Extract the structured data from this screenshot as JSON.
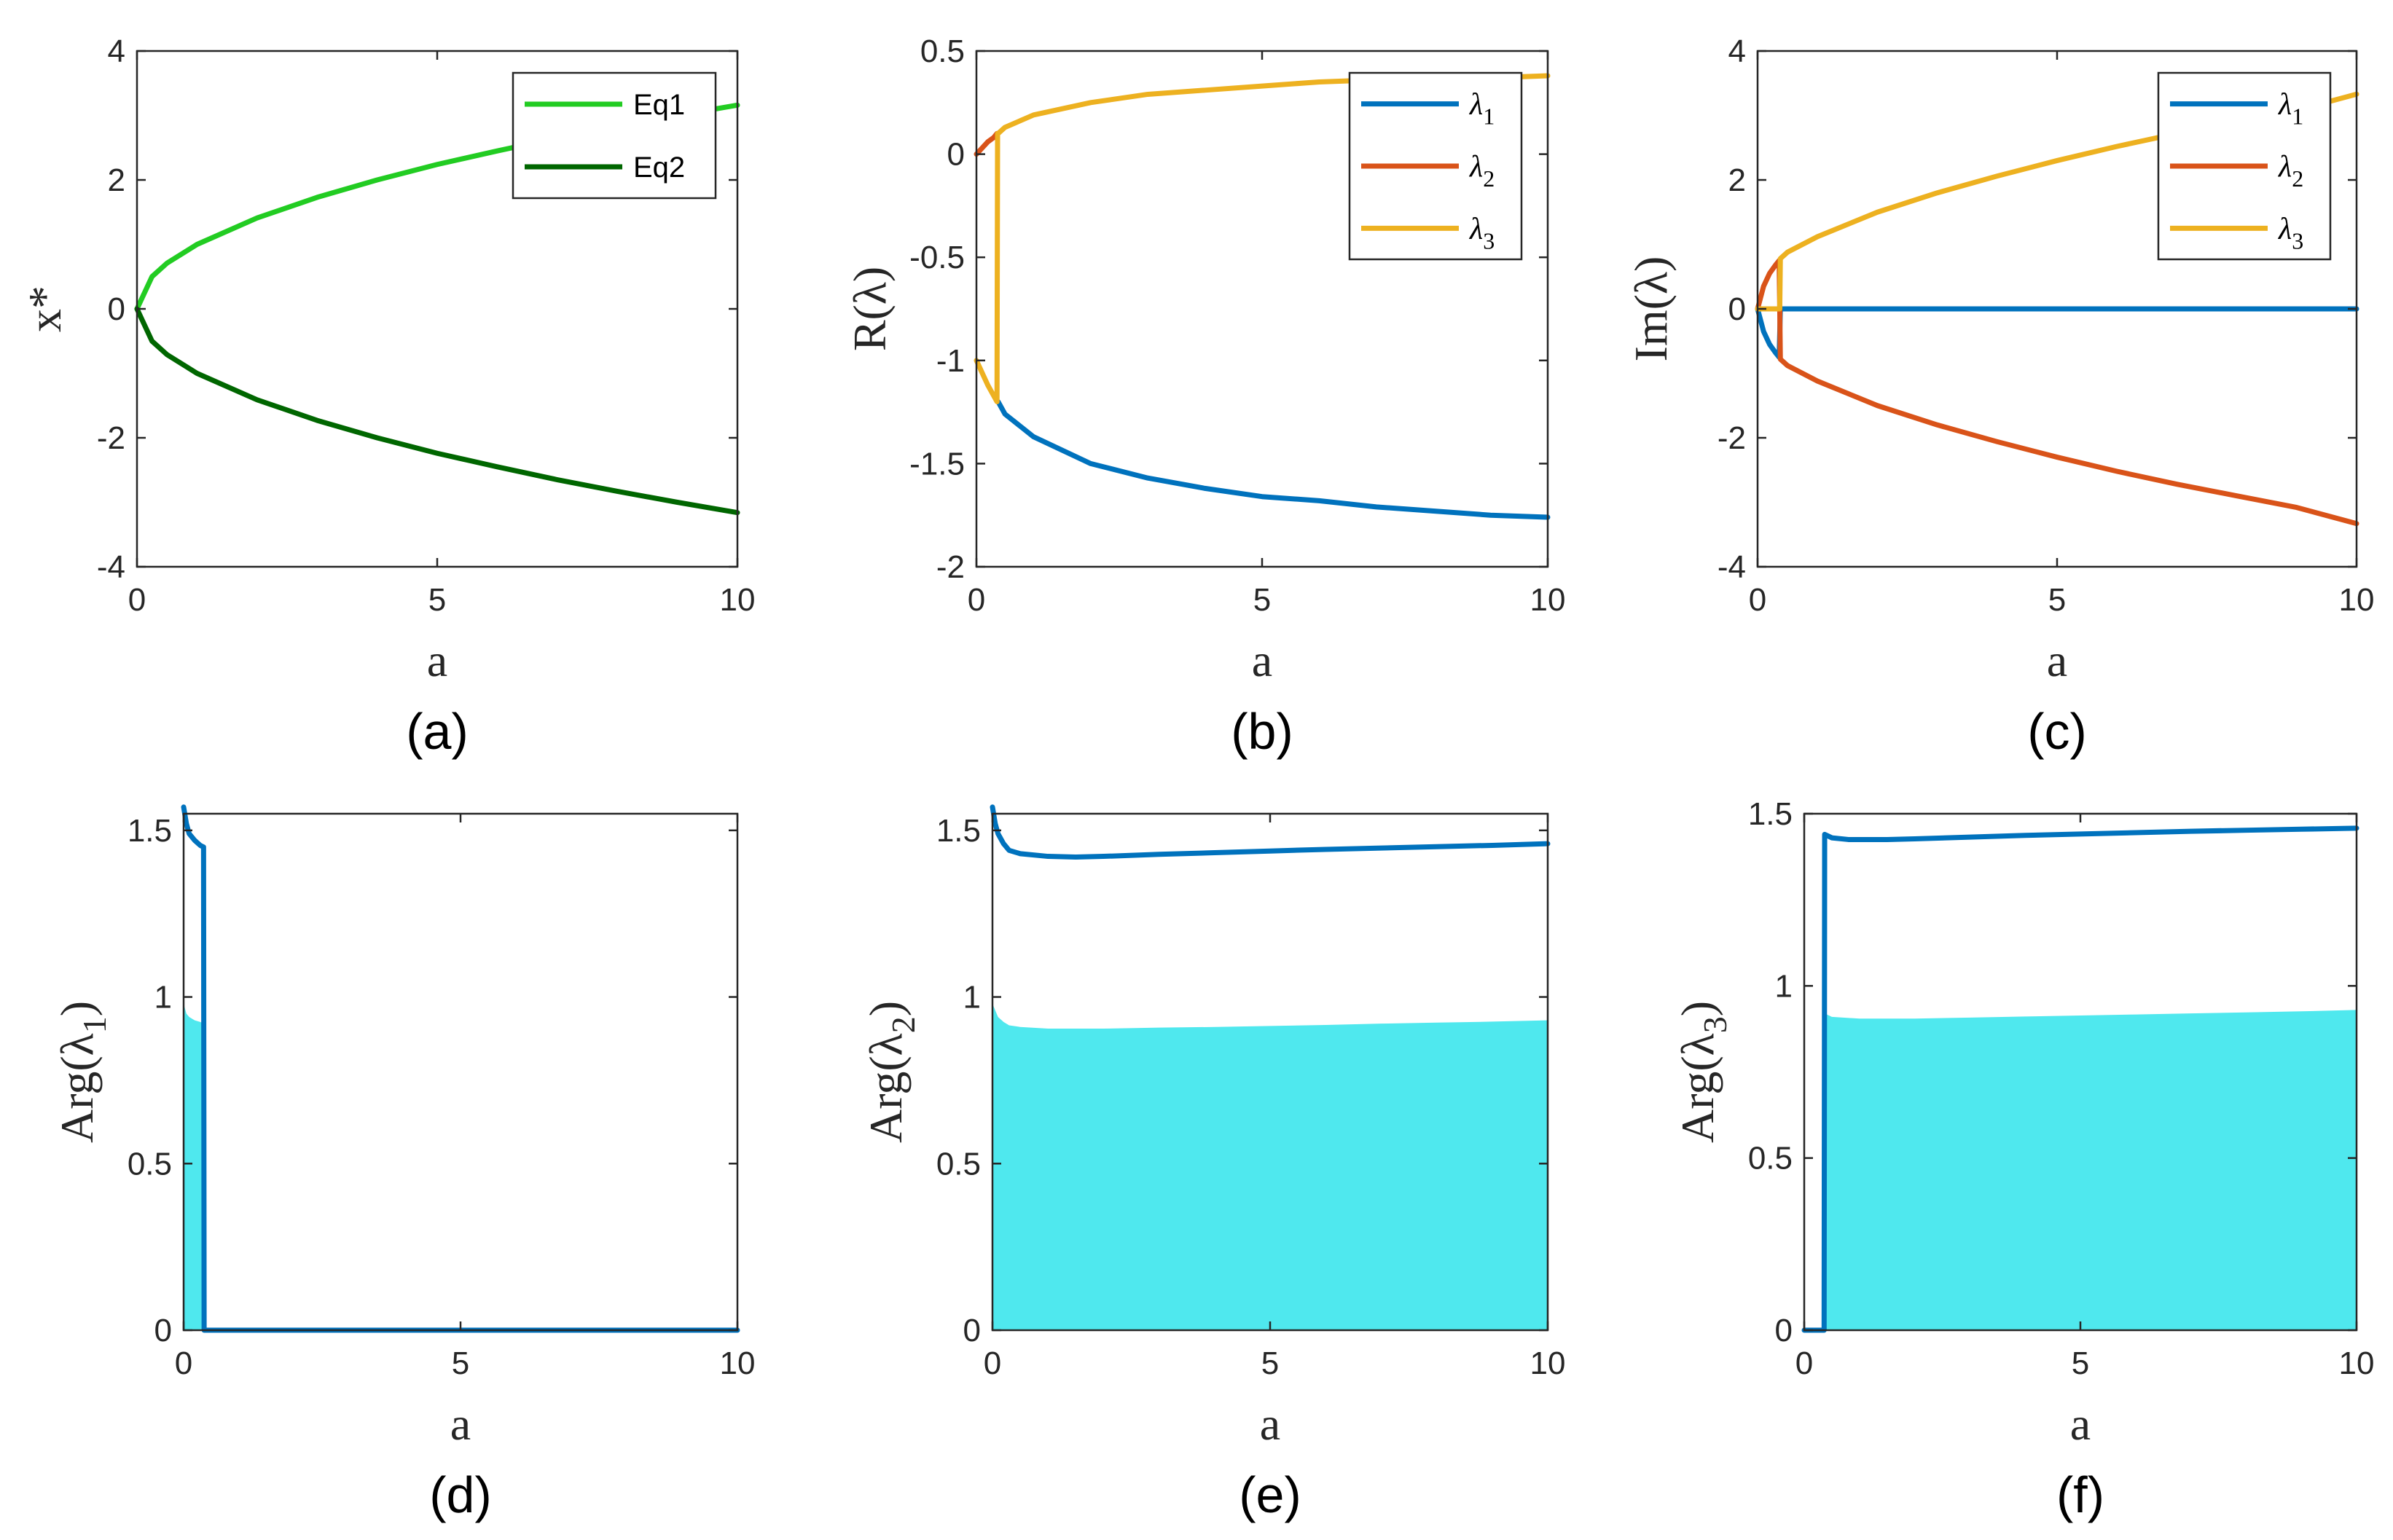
{
  "chart_data": [
    {
      "id": "a",
      "panel_label": "(a)",
      "type": "line",
      "xlabel": "a",
      "ylabel": "x*",
      "xlim": [
        0,
        10
      ],
      "ylim": [
        -4,
        4
      ],
      "xticks": [
        "0",
        "5",
        "10"
      ],
      "yticks": [
        "-4",
        "-2",
        "0",
        "2",
        "4"
      ],
      "legend": "top-right",
      "series": [
        {
          "name": "Eq1",
          "color": "#22cc22",
          "x": [
            0,
            0.25,
            0.5,
            1,
            2,
            3,
            4,
            5,
            6,
            7,
            8,
            9,
            10
          ],
          "y": [
            0,
            0.5,
            0.71,
            1.0,
            1.41,
            1.73,
            2.0,
            2.24,
            2.45,
            2.65,
            2.83,
            3.0,
            3.16
          ]
        },
        {
          "name": "Eq2",
          "color": "#006600",
          "x": [
            0,
            0.25,
            0.5,
            1,
            2,
            3,
            4,
            5,
            6,
            7,
            8,
            9,
            10
          ],
          "y": [
            0,
            -0.5,
            -0.71,
            -1.0,
            -1.41,
            -1.73,
            -2.0,
            -2.24,
            -2.45,
            -2.65,
            -2.83,
            -3.0,
            -3.16
          ]
        }
      ]
    },
    {
      "id": "b",
      "panel_label": "(b)",
      "type": "line",
      "xlabel": "a",
      "ylabel": "R(λ)",
      "xlim": [
        0,
        10
      ],
      "ylim": [
        -2,
        0.5
      ],
      "xticks": [
        "0",
        "5",
        "10"
      ],
      "yticks": [
        "-2",
        "-1.5",
        "-1",
        "-0.5",
        "0",
        "0.5"
      ],
      "legend": "top-right",
      "series": [
        {
          "name": "λ",
          "subscript": "1",
          "color": "#0072bd",
          "x": [
            0.38,
            0.5,
            1,
            2,
            3,
            4,
            5,
            6,
            7,
            8,
            9,
            10
          ],
          "y": [
            -1.2,
            -1.26,
            -1.37,
            -1.5,
            -1.57,
            -1.62,
            -1.66,
            -1.68,
            -1.71,
            -1.73,
            -1.75,
            -1.76
          ]
        },
        {
          "name": "λ",
          "subscript": "2",
          "color": "#d95319",
          "x": [
            0,
            0.1,
            0.2,
            0.3,
            0.36
          ],
          "y": [
            0,
            0.03,
            0.06,
            0.08,
            0.1
          ]
        },
        {
          "name": "λ",
          "subscript": "3",
          "color": "#edb120",
          "x": [
            0,
            0.1,
            0.2,
            0.3,
            0.36,
            0.37,
            0.38,
            0.5,
            1,
            2,
            3,
            4,
            5,
            6,
            7,
            8,
            9,
            10
          ],
          "y": [
            -1.0,
            -1.06,
            -1.12,
            -1.17,
            -1.2,
            0.1,
            0.1,
            0.13,
            0.19,
            0.25,
            0.29,
            0.31,
            0.33,
            0.35,
            0.36,
            0.37,
            0.37,
            0.38
          ]
        }
      ]
    },
    {
      "id": "c",
      "panel_label": "(c)",
      "type": "line",
      "xlabel": "a",
      "ylabel": "Im(λ)",
      "xlim": [
        0,
        10
      ],
      "ylim": [
        -4,
        4
      ],
      "xticks": [
        "0",
        "5",
        "10"
      ],
      "yticks": [
        "-4",
        "-2",
        "0",
        "2",
        "4"
      ],
      "legend": "top-right",
      "series": [
        {
          "name": "λ",
          "subscript": "1",
          "color": "#0072bd",
          "x": [
            0,
            0.1,
            0.2,
            0.3,
            0.36,
            0.38,
            1,
            2,
            4,
            6,
            8,
            10
          ],
          "y": [
            0,
            -0.35,
            -0.55,
            -0.68,
            -0.75,
            0,
            0,
            0,
            0,
            0,
            0,
            0
          ]
        },
        {
          "name": "λ",
          "subscript": "2",
          "color": "#d95319",
          "x": [
            0,
            0.1,
            0.2,
            0.3,
            0.36,
            0.37,
            0.38,
            0.5,
            1,
            2,
            3,
            4,
            5,
            6,
            7,
            8,
            9,
            10
          ],
          "y": [
            0,
            0.35,
            0.55,
            0.68,
            0.75,
            0,
            -0.78,
            -0.88,
            -1.12,
            -1.5,
            -1.8,
            -2.06,
            -2.3,
            -2.52,
            -2.72,
            -2.9,
            -3.08,
            -3.33
          ]
        },
        {
          "name": "λ",
          "subscript": "3",
          "color": "#edb120",
          "x": [
            0,
            0.05,
            0.36,
            0.37,
            0.38,
            0.5,
            1,
            2,
            3,
            4,
            5,
            6,
            7,
            8,
            9,
            10
          ],
          "y": [
            0,
            0,
            0,
            0,
            0.78,
            0.88,
            1.12,
            1.5,
            1.8,
            2.06,
            2.3,
            2.52,
            2.72,
            2.9,
            3.08,
            3.33
          ]
        }
      ]
    },
    {
      "id": "d",
      "panel_label": "(d)",
      "type": "line",
      "xlabel": "a",
      "ylabel": "Arg(λ1)",
      "ylabel_main": "Arg(λ",
      "ylabel_sub": "1",
      "ylabel_end": ")",
      "xlim": [
        0,
        10
      ],
      "ylim": [
        0,
        1.55
      ],
      "xticks": [
        "0",
        "5",
        "10"
      ],
      "yticks": [
        "0",
        "0.5",
        "1",
        "1.5"
      ],
      "series": [
        {
          "name": "Arg(λ1)",
          "color": "#0072bd",
          "x": [
            0,
            0.05,
            0.1,
            0.2,
            0.3,
            0.36,
            0.37,
            0.38,
            1,
            5,
            10
          ],
          "y": [
            1.57,
            1.52,
            1.49,
            1.47,
            1.455,
            1.45,
            0,
            0,
            0,
            0,
            0
          ]
        }
      ],
      "band": {
        "color": "#4fe8ee",
        "x": [
          0,
          0.05,
          0.1,
          0.2,
          0.3,
          0.36
        ],
        "y": [
          0.98,
          0.95,
          0.94,
          0.93,
          0.925,
          0.92
        ]
      }
    },
    {
      "id": "e",
      "panel_label": "(e)",
      "type": "line",
      "xlabel": "a",
      "ylabel": "Arg(λ2)",
      "ylabel_main": "Arg(λ",
      "ylabel_sub": "2",
      "ylabel_end": ")",
      "xlim": [
        0,
        10
      ],
      "ylim": [
        0,
        1.55
      ],
      "xticks": [
        "0",
        "5",
        "10"
      ],
      "yticks": [
        "0",
        "0.5",
        "1",
        "1.5"
      ],
      "series": [
        {
          "name": "Arg(λ2)",
          "color": "#0072bd",
          "x": [
            0,
            0.05,
            0.1,
            0.2,
            0.3,
            0.5,
            1,
            1.5,
            2,
            3,
            4,
            5,
            6,
            7,
            8,
            9,
            10
          ],
          "y": [
            1.57,
            1.52,
            1.49,
            1.46,
            1.44,
            1.43,
            1.422,
            1.42,
            1.422,
            1.428,
            1.433,
            1.438,
            1.443,
            1.447,
            1.451,
            1.455,
            1.46
          ]
        }
      ],
      "band": {
        "color": "#4fe8ee",
        "x": [
          0,
          0.05,
          0.1,
          0.2,
          0.3,
          0.5,
          1,
          2,
          3,
          4,
          5,
          6,
          7,
          8,
          9,
          10
        ],
        "y": [
          0.98,
          0.96,
          0.94,
          0.925,
          0.915,
          0.91,
          0.905,
          0.905,
          0.908,
          0.91,
          0.913,
          0.916,
          0.92,
          0.923,
          0.926,
          0.93
        ]
      }
    },
    {
      "id": "f",
      "panel_label": "(f)",
      "type": "line",
      "xlabel": "a",
      "ylabel": "Arg(λ3)",
      "ylabel_main": "Arg(λ",
      "ylabel_sub": "3",
      "ylabel_end": ")",
      "xlim": [
        0,
        10
      ],
      "ylim": [
        0,
        1.5
      ],
      "xticks": [
        "0",
        "5",
        "10"
      ],
      "yticks": [
        "0",
        "0.5",
        "1",
        "1.5"
      ],
      "series": [
        {
          "name": "Arg(λ3)",
          "color": "#0072bd",
          "x": [
            0,
            0.36,
            0.37,
            0.5,
            0.8,
            1.5,
            2,
            3,
            4,
            5,
            6,
            7,
            8,
            9,
            10
          ],
          "y": [
            0,
            0,
            1.44,
            1.43,
            1.425,
            1.425,
            1.427,
            1.432,
            1.437,
            1.441,
            1.445,
            1.449,
            1.452,
            1.455,
            1.458
          ]
        }
      ],
      "band": {
        "color": "#4fe8ee",
        "x": [
          0.37,
          0.5,
          1,
          2,
          3,
          4,
          5,
          6,
          7,
          8,
          9,
          10
        ],
        "y": [
          0.92,
          0.91,
          0.905,
          0.905,
          0.908,
          0.911,
          0.914,
          0.917,
          0.92,
          0.923,
          0.926,
          0.93
        ]
      }
    }
  ]
}
